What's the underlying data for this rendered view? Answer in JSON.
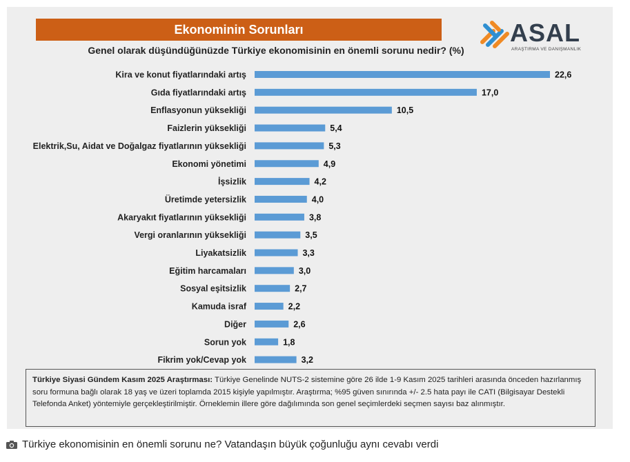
{
  "header": {
    "title": "Ekonominin Sorunları",
    "question": "Genel olarak düşündüğünüzde  Türkiye ekonomisinin  en önemli sorunu nedir? (%)"
  },
  "logo": {
    "name": "ASAL",
    "subtitle": "ARAŞTIRMA VE DANIŞMANLIK"
  },
  "colors": {
    "bar": "#5b9bd5",
    "title_bg": "#cc5f16",
    "logo_orange": "#f08a24",
    "logo_blue": "#2f8fd1"
  },
  "chart_data": {
    "type": "bar",
    "orientation": "horizontal",
    "title": "Genel olarak düşündüğünüzde  Türkiye ekonomisinin  en önemli sorunu nedir? (%)",
    "categories": [
      "Kira ve konut fiyatlarındaki artış",
      "Gıda fiyatlarındaki artış",
      "Enflasyonun yüksekliği",
      "Faizlerin yüksekliği",
      "Elektrik,Su, Aidat ve Doğalgaz fiyatlarının yüksekliği",
      "Ekonomi yönetimi",
      "İşsizlik",
      "Üretimde yetersizlik",
      "Akaryakıt fiyatlarının yüksekliği",
      "Vergi oranlarının yüksekliği",
      "Liyakatsizlik",
      "Eğitim harcamaları",
      "Sosyal eşitsizlik",
      "Kamuda israf",
      "Diğer",
      "Sorun yok",
      "Fikrim yok/Cevap yok"
    ],
    "values": [
      22.6,
      17.0,
      10.5,
      5.4,
      5.3,
      4.9,
      4.2,
      4.0,
      3.8,
      3.5,
      3.3,
      3.0,
      2.7,
      2.2,
      2.6,
      1.8,
      3.2
    ],
    "value_labels": [
      "22,6",
      "17,0",
      "10,5",
      "5,4",
      "5,3",
      "4,9",
      "4,2",
      "4,0",
      "3,8",
      "3,5",
      "3,3",
      "3,0",
      "2,7",
      "2,2",
      "2,6",
      "1,8",
      "3,2"
    ],
    "xlim": [
      0,
      22.6
    ],
    "grid": false,
    "legend": "none"
  },
  "note": {
    "bold": "Türkiye Siyasi Gündem Kasım 2025 Araştırması:",
    "text": " Türkiye Genelinde  NUTS-2 sistemine göre 26 ilde 1-9 Kasım 2025 tarihleri arasında önceden  hazırlanmış soru formuna bağlı olarak 18 yaş ve üzeri toplamda 2015 kişiyle yapılmıştır. Araştırma; %95 güven sınırında +/- 2.5 hata payı ile CATI (Bilgisayar Destekli Telefonda  Anket) yöntemiyle gerçekleştirilmiştir. Örneklemin illere göre dağılımında son genel  seçimlerdeki seçmen sayısı baz alınmıştır."
  },
  "caption": {
    "icon": "camera-icon",
    "text": "Türkiye ekonomisinin en önemli sorunu ne? Vatandaşın büyük çoğunluğu aynı cevabı verdi"
  }
}
